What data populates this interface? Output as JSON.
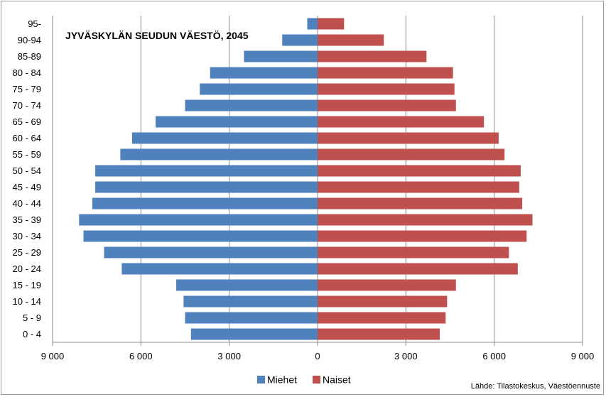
{
  "chart_data": {
    "type": "bar",
    "orientation": "horizontal",
    "title": "JYVÄSKYLÄN SEUDUN VÄESTÖ, 2045",
    "source": "Lähde: Tilastokeskus, Väestöennuste",
    "categories": [
      "0 - 4",
      "5 - 9",
      "10 - 14",
      "15 - 19",
      "20 - 24",
      "25 - 29",
      "30 - 34",
      "35 - 39",
      "40 - 44",
      "45 - 49",
      "50 - 54",
      "55 - 59",
      "60 - 64",
      "65 - 69",
      "70 - 74",
      "75 - 79",
      "80 - 84",
      "85-89",
      "90-94",
      "95-"
    ],
    "series": [
      {
        "name": "Miehet",
        "color": "#4f81bd",
        "side": "left",
        "values": [
          4300,
          4500,
          4550,
          4800,
          6650,
          7250,
          7950,
          8100,
          7650,
          7550,
          7550,
          6700,
          6300,
          5500,
          4500,
          4000,
          3650,
          2500,
          1200,
          350
        ]
      },
      {
        "name": "Naiset",
        "color": "#c0504d",
        "side": "right",
        "values": [
          4150,
          4350,
          4400,
          4700,
          6800,
          6500,
          7100,
          7300,
          6950,
          6850,
          6900,
          6350,
          6150,
          5650,
          4700,
          4650,
          4600,
          3700,
          2250,
          900
        ]
      }
    ],
    "xlim": [
      -9000,
      9000
    ],
    "xticks": [
      -9000,
      -6000,
      -3000,
      0,
      3000,
      6000,
      9000
    ],
    "xtick_labels": [
      "9 000",
      "6 000",
      "3 000",
      "0",
      "3 000",
      "6 000",
      "9 000"
    ],
    "grid": "vertical",
    "legend": "bottom"
  }
}
